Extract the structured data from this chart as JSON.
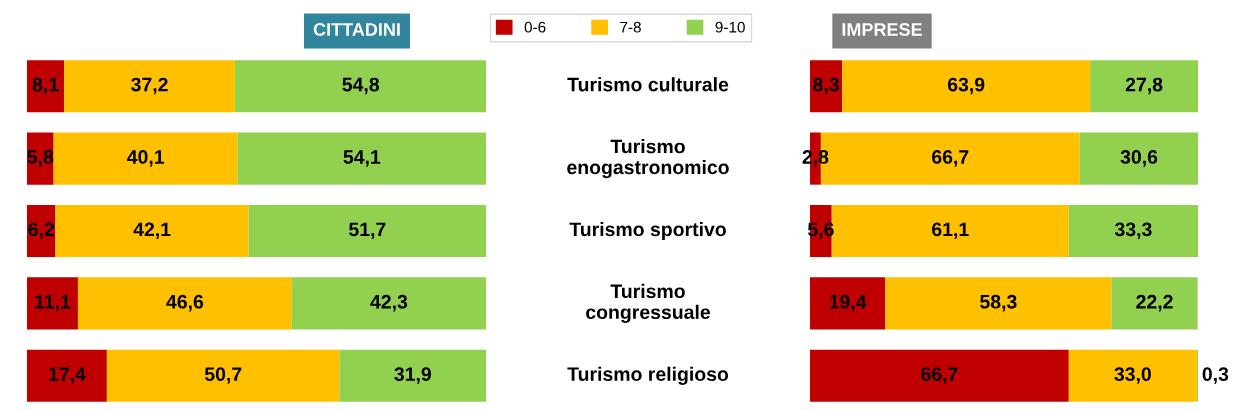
{
  "chart_data": [
    {
      "type": "bar",
      "orientation": "horizontal",
      "stacked": true,
      "title": "CITTADINI",
      "legend": "top",
      "xlim": [
        0,
        100
      ],
      "categories": [
        "Turismo culturale",
        "Turismo enogastronomico",
        "Turismo sportivo",
        "Turismo congressuale",
        "Turismo religioso"
      ],
      "series": [
        {
          "name": "0-6",
          "color": "#c00000",
          "values": [
            8.1,
            5.8,
            6.2,
            11.1,
            17.4
          ],
          "value_labels": [
            "8,1",
            "5,8",
            "6,2",
            "11,1",
            "17,4"
          ]
        },
        {
          "name": "7-8",
          "color": "#ffc000",
          "values": [
            37.2,
            40.1,
            42.1,
            46.6,
            50.7
          ],
          "value_labels": [
            "37,2",
            "40,1",
            "42,1",
            "46,6",
            "50,7"
          ]
        },
        {
          "name": "9-10",
          "color": "#92d050",
          "values": [
            54.8,
            54.1,
            51.7,
            42.3,
            31.9
          ],
          "value_labels": [
            "54,8",
            "54,1",
            "51,7",
            "42,3",
            "31,9"
          ]
        }
      ]
    },
    {
      "type": "bar",
      "orientation": "horizontal",
      "stacked": true,
      "title": "IMPRESE",
      "xlim": [
        0,
        100
      ],
      "categories": [
        null,
        null,
        null,
        null,
        null
      ],
      "series": [
        {
          "color": "#c00000",
          "values": [
            8.3,
            2.8,
            5.6,
            19.4,
            66.7
          ],
          "value_labels": [
            "8,3",
            "2,8",
            "5,6",
            "19,4",
            "66,7"
          ]
        },
        {
          "color": "#ffc000",
          "values": [
            63.9,
            66.7,
            61.1,
            58.3,
            33.0
          ],
          "value_labels": [
            "63,9",
            "66,7",
            "61,1",
            "58,3",
            "33,0"
          ]
        },
        {
          "color": "#92d050",
          "values": [
            27.8,
            30.6,
            33.3,
            22.2,
            0.3
          ],
          "value_labels": [
            "27,8",
            "30,6",
            "33,3",
            "22,2",
            "0,3"
          ]
        }
      ]
    }
  ]
}
